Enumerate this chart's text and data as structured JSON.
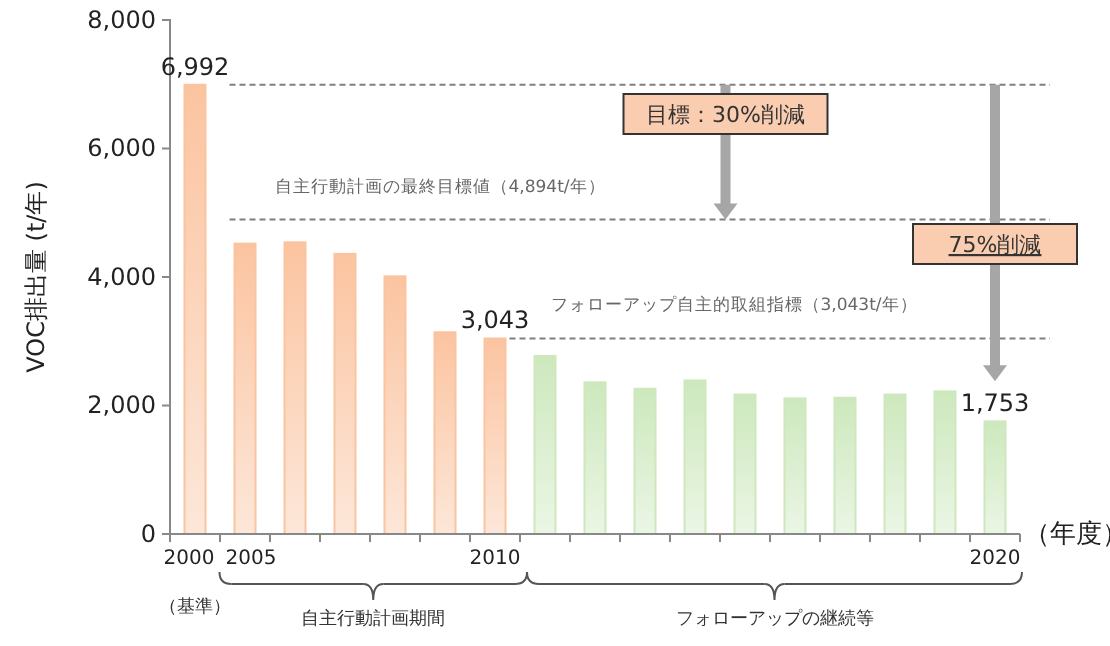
{
  "chart_data": {
    "type": "bar",
    "ylabel": "VOC排出量 (t/年)",
    "xlabel": "（年度）",
    "categories": [
      "2000",
      "2005",
      null,
      null,
      null,
      null,
      "2010",
      null,
      null,
      null,
      null,
      null,
      null,
      null,
      null,
      null,
      "2020"
    ],
    "values": [
      6992,
      4520,
      4540,
      4360,
      4010,
      3140,
      3043,
      2770,
      2360,
      2260,
      2390,
      2170,
      2110,
      2120,
      2170,
      2220,
      1753
    ],
    "value_labels": [
      "6,992",
      null,
      null,
      null,
      null,
      null,
      "3,043",
      null,
      null,
      null,
      null,
      null,
      null,
      null,
      null,
      null,
      "1,753"
    ],
    "colors": [
      "#fbc4a0",
      "#fbc4a0",
      "#fbc4a0",
      "#fbc4a0",
      "#fbc4a0",
      "#fbc4a0",
      "#fbc4a0",
      "#cde8bd",
      "#cde8bd",
      "#cde8bd",
      "#cde8bd",
      "#cde8bd",
      "#cde8bd",
      "#cde8bd",
      "#cde8bd",
      "#cde8bd",
      "#cde8bd"
    ],
    "ylim": [
      0,
      8000
    ],
    "yticks": [
      0,
      {
        "value": 2000,
        "label": "2,000"
      },
      {
        "value": 4000,
        "label": "4,000"
      },
      {
        "value": 6000,
        "label": "6,000"
      },
      {
        "value": 8000,
        "label": "8,000"
      }
    ],
    "ref_lines": [
      {
        "axis": "y",
        "value": 6992,
        "line_style": "dashed",
        "color": "#7f7f7f"
      },
      {
        "axis": "y",
        "value": 4894,
        "label": "自主行動計画の最終目標値（4,894t/年）",
        "line_style": "dashed",
        "color": "#7f7f7f"
      },
      {
        "axis": "y",
        "value": 3043,
        "label": "フォローアップ自主的取組指標（3,043t/年）",
        "line_style": "dashed",
        "color": "#7f7f7f"
      }
    ],
    "annotations": [
      "目標：30%削減",
      "75%削減",
      "（基準）",
      "自主行動計画期間",
      "フォローアップの継続等"
    ]
  }
}
